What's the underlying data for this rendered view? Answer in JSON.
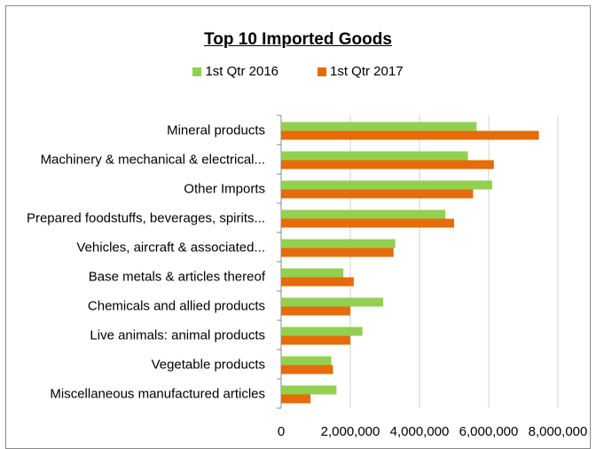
{
  "chart_data": {
    "type": "bar",
    "orientation": "horizontal",
    "title": "Top 10 Imported Goods",
    "xlabel": "",
    "ylabel": "",
    "xlim": [
      0,
      8000000
    ],
    "x_ticks": [
      0,
      2000000,
      4000000,
      6000000,
      8000000
    ],
    "x_tick_labels": [
      "0",
      "2,000,000",
      "4,000,000",
      "6,000,000",
      "8,000,000"
    ],
    "grid": true,
    "legend_position": "top",
    "categories": [
      "Mineral products",
      "Machinery & mechanical & electrical...",
      "Other Imports",
      "Prepared foodstuffs, beverages, spirits...",
      "Vehicles, aircraft & associated...",
      "Base metals & articles thereof",
      "Chemicals and allied products",
      "Live animals: animal products",
      "Vegetable products",
      "Miscellaneous manufactured articles"
    ],
    "series": [
      {
        "name": "1st Qtr 2016",
        "color": "#92d050",
        "values": [
          5650000,
          5400000,
          6100000,
          4750000,
          3300000,
          1800000,
          2950000,
          2350000,
          1450000,
          1600000
        ]
      },
      {
        "name": "1st Qtr 2017",
        "color": "#e46c0a",
        "values": [
          7450000,
          6150000,
          5550000,
          5000000,
          3250000,
          2100000,
          2000000,
          2000000,
          1500000,
          850000
        ]
      }
    ]
  }
}
